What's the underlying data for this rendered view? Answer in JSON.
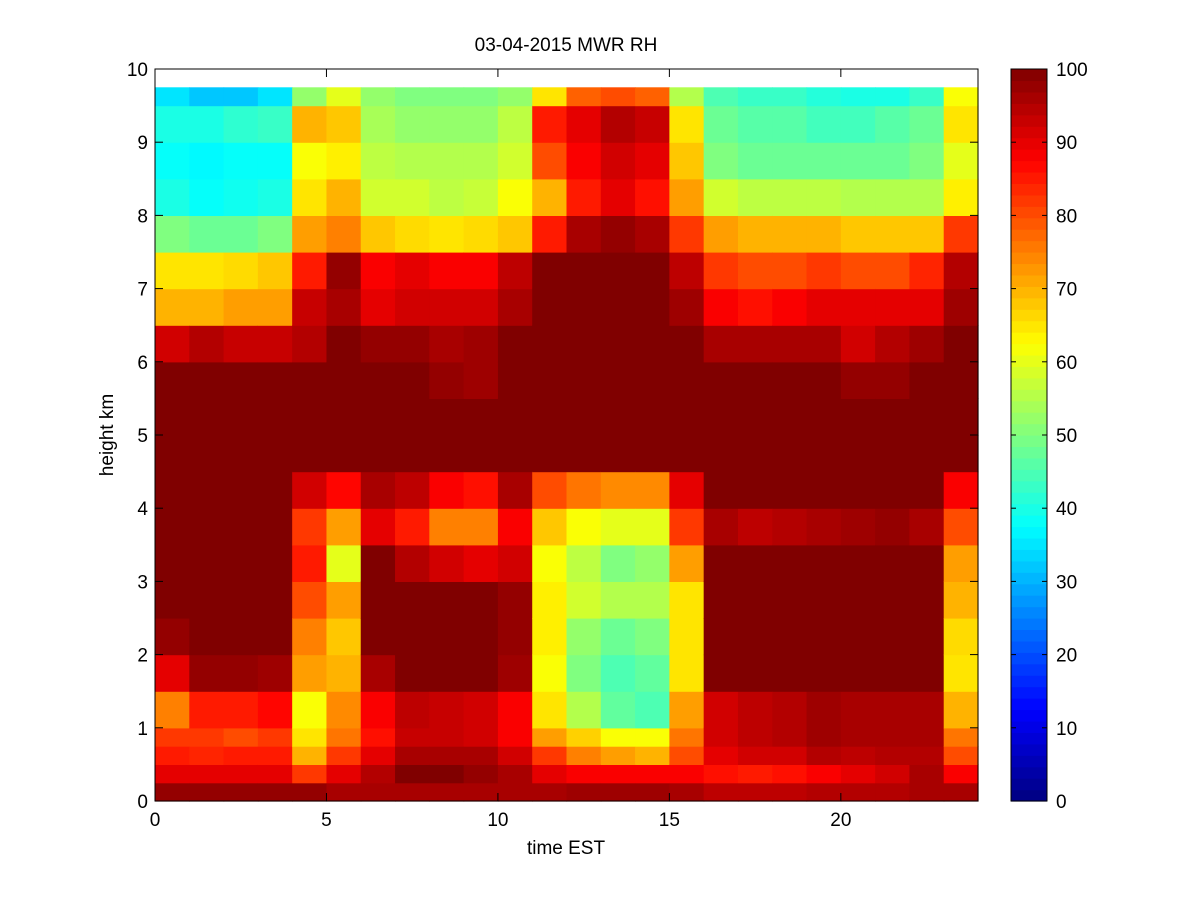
{
  "chart_data": {
    "type": "heatmap",
    "title": "03-04-2015 MWR RH",
    "xlabel": "time EST",
    "ylabel": "height km",
    "xlim": [
      0,
      24
    ],
    "ylim": [
      0,
      10
    ],
    "xticks": [
      0,
      5,
      10,
      15,
      20
    ],
    "yticks": [
      0,
      1,
      2,
      3,
      4,
      5,
      6,
      7,
      8,
      9,
      10
    ],
    "colorbar": {
      "clim": [
        0,
        100
      ],
      "ticks": [
        0,
        10,
        20,
        30,
        40,
        50,
        60,
        70,
        80,
        90,
        100
      ],
      "colormap": "jet"
    },
    "grid": false,
    "time_step_hours": 1,
    "height_levels_km": [
      0,
      0.25,
      0.5,
      0.75,
      1.0,
      1.5,
      2.0,
      2.5,
      3.0,
      3.5,
      4.0,
      4.5,
      5.0,
      5.5,
      6.0,
      6.5,
      7.0,
      7.5,
      8.0,
      8.5,
      9.0,
      9.5
    ],
    "height_top_km": 9.75,
    "columns": [
      {
        "time": 0.5,
        "rh": [
          98,
          90,
          85,
          82,
          75,
          90,
          98,
          100,
          100,
          100,
          100,
          100,
          100,
          100,
          92,
          70,
          65,
          50,
          40,
          38,
          40,
          35
        ]
      },
      {
        "time": 1.5,
        "rh": [
          98,
          90,
          84,
          82,
          85,
          98,
          100,
          100,
          100,
          100,
          100,
          100,
          100,
          100,
          95,
          70,
          65,
          48,
          38,
          37,
          40,
          32
        ]
      },
      {
        "time": 2.5,
        "rh": [
          98,
          90,
          85,
          80,
          85,
          98,
          100,
          100,
          100,
          100,
          100,
          100,
          100,
          100,
          93,
          72,
          66,
          48,
          39,
          38,
          42,
          32
        ]
      },
      {
        "time": 3.5,
        "rh": [
          98,
          90,
          85,
          82,
          87,
          97,
          100,
          100,
          100,
          100,
          100,
          100,
          100,
          100,
          93,
          72,
          68,
          50,
          40,
          38,
          43,
          35
        ]
      },
      {
        "time": 4.5,
        "rh": [
          98,
          82,
          70,
          65,
          62,
          72,
          75,
          80,
          85,
          82,
          92,
          100,
          100,
          100,
          95,
          93,
          85,
          72,
          65,
          62,
          70,
          52
        ]
      },
      {
        "time": 5.5,
        "rh": [
          96,
          90,
          82,
          76,
          74,
          70,
          68,
          72,
          60,
          72,
          87,
          100,
          100,
          100,
          100,
          96,
          98,
          75,
          70,
          64,
          68,
          60
        ]
      },
      {
        "time": 6.5,
        "rh": [
          96,
          95,
          90,
          86,
          88,
          96,
          100,
          100,
          100,
          90,
          96,
          100,
          100,
          100,
          98,
          90,
          88,
          68,
          58,
          56,
          54,
          52
        ]
      },
      {
        "time": 7.5,
        "rh": [
          96,
          100,
          96,
          93,
          94,
          100,
          100,
          100,
          95,
          85,
          94,
          100,
          100,
          100,
          98,
          92,
          90,
          66,
          58,
          55,
          52,
          50
        ]
      },
      {
        "time": 8.5,
        "rh": [
          96,
          100,
          96,
          93,
          93,
          100,
          100,
          100,
          92,
          75,
          88,
          100,
          100,
          98,
          96,
          92,
          88,
          65,
          56,
          55,
          52,
          50
        ]
      },
      {
        "time": 9.5,
        "rh": [
          96,
          98,
          96,
          92,
          92,
          100,
          100,
          100,
          90,
          75,
          86,
          100,
          100,
          97,
          97,
          92,
          88,
          66,
          57,
          55,
          52,
          50
        ]
      },
      {
        "time": 10.5,
        "rh": [
          96,
          96,
          92,
          88,
          88,
          97,
          98,
          98,
          92,
          88,
          96,
          100,
          100,
          100,
          100,
          96,
          94,
          68,
          62,
          58,
          56,
          52
        ]
      },
      {
        "time": 11.5,
        "rh": [
          96,
          90,
          82,
          72,
          65,
          62,
          64,
          64,
          62,
          68,
          80,
          100,
          100,
          100,
          100,
          100,
          100,
          85,
          70,
          80,
          85,
          65
        ]
      },
      {
        "time": 12.5,
        "rh": [
          97,
          88,
          75,
          67,
          55,
          50,
          52,
          58,
          56,
          62,
          76,
          100,
          100,
          100,
          100,
          100,
          100,
          96,
          85,
          88,
          90,
          78
        ]
      },
      {
        "time": 13.5,
        "rh": [
          97,
          88,
          72,
          62,
          47,
          45,
          48,
          55,
          50,
          60,
          74,
          100,
          100,
          100,
          100,
          100,
          100,
          98,
          90,
          92,
          95,
          80
        ]
      },
      {
        "time": 14.5,
        "rh": [
          97,
          88,
          70,
          62,
          45,
          47,
          50,
          55,
          52,
          60,
          74,
          100,
          100,
          100,
          100,
          100,
          100,
          96,
          86,
          90,
          93,
          78
        ]
      },
      {
        "time": 15.5,
        "rh": [
          96,
          88,
          80,
          76,
          72,
          65,
          65,
          65,
          72,
          82,
          90,
          100,
          100,
          100,
          100,
          97,
          94,
          82,
          72,
          68,
          65,
          55
        ]
      },
      {
        "time": 16.5,
        "rh": [
          94,
          86,
          90,
          92,
          92,
          100,
          100,
          100,
          100,
          96,
          100,
          100,
          100,
          100,
          96,
          88,
          82,
          72,
          58,
          50,
          48,
          45
        ]
      },
      {
        "time": 17.5,
        "rh": [
          94,
          85,
          92,
          94,
          94,
          100,
          100,
          100,
          100,
          94,
          100,
          100,
          100,
          100,
          96,
          86,
          80,
          70,
          56,
          48,
          46,
          43
        ]
      },
      {
        "time": 18.5,
        "rh": [
          94,
          86,
          92,
          95,
          95,
          100,
          100,
          100,
          100,
          95,
          100,
          100,
          100,
          100,
          96,
          88,
          80,
          70,
          56,
          48,
          46,
          43
        ]
      },
      {
        "time": 19.5,
        "rh": [
          95,
          88,
          95,
          97,
          97,
          100,
          100,
          100,
          100,
          96,
          100,
          100,
          100,
          100,
          96,
          90,
          82,
          70,
          56,
          48,
          44,
          41
        ]
      },
      {
        "time": 20.5,
        "rh": [
          95,
          90,
          94,
          96,
          96,
          100,
          100,
          100,
          100,
          97,
          100,
          100,
          100,
          98,
          92,
          90,
          80,
          68,
          55,
          48,
          44,
          40
        ]
      },
      {
        "time": 21.5,
        "rh": [
          95,
          92,
          95,
          96,
          96,
          100,
          100,
          100,
          100,
          98,
          100,
          100,
          100,
          98,
          95,
          90,
          80,
          68,
          55,
          48,
          46,
          40
        ]
      },
      {
        "time": 22.5,
        "rh": [
          96,
          96,
          95,
          96,
          96,
          100,
          100,
          100,
          100,
          96,
          100,
          100,
          100,
          100,
          97,
          90,
          84,
          68,
          55,
          50,
          48,
          43
        ]
      },
      {
        "time": 23.5,
        "rh": [
          96,
          88,
          80,
          76,
          70,
          65,
          66,
          70,
          72,
          80,
          88,
          100,
          100,
          100,
          100,
          97,
          95,
          82,
          64,
          60,
          65,
          62
        ]
      }
    ]
  }
}
